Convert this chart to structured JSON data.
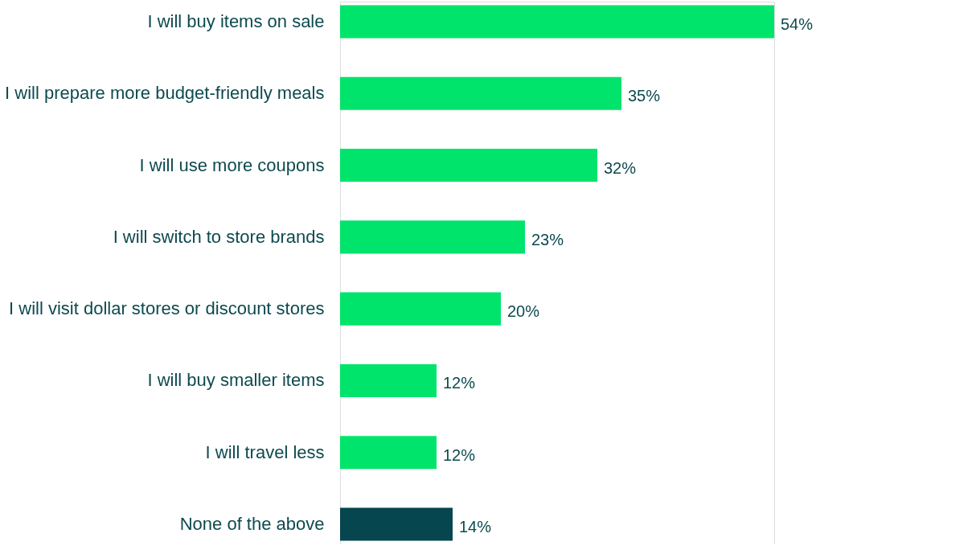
{
  "chart_data": {
    "type": "bar",
    "orientation": "horizontal",
    "categories": [
      "I will buy items on sale",
      "I will prepare more budget-friendly meals",
      "I will use more coupons",
      "I will switch to store brands",
      "I will visit dollar stores or discount stores",
      "I will buy smaller items",
      "I will travel less",
      "None of the above"
    ],
    "values": [
      54,
      35,
      32,
      23,
      20,
      12,
      12,
      14
    ],
    "colors": [
      "#00e46c",
      "#00e46c",
      "#00e46c",
      "#00e46c",
      "#00e46c",
      "#00e46c",
      "#00e46c",
      "#05464f"
    ],
    "value_labels": [
      "54%",
      "35%",
      "32%",
      "23%",
      "20%",
      "12%",
      "12%",
      "14%"
    ],
    "grid": false
  }
}
